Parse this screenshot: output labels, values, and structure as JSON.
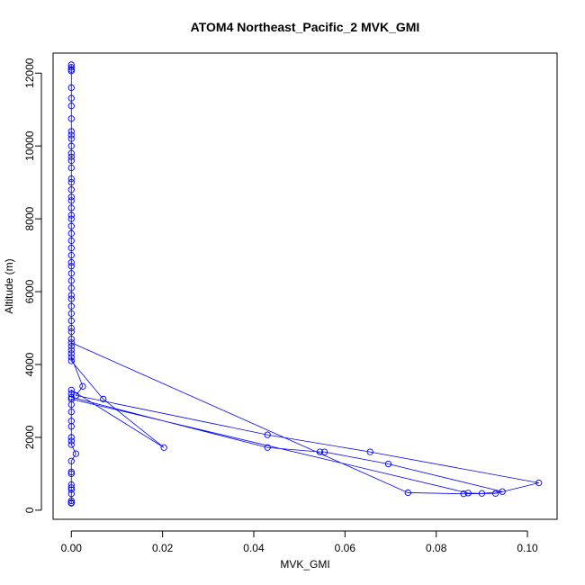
{
  "chart_data": {
    "type": "line",
    "title": "ATOM4 Northeast_Pacific_2 MVK_GMI",
    "xlabel": "MVK_GMI",
    "ylabel": "Altitude (m)",
    "xlim": [
      -0.004,
      0.1065
    ],
    "ylim": [
      -250,
      12550
    ],
    "xticks": [
      0.0,
      0.02,
      0.04,
      0.06,
      0.08,
      0.1
    ],
    "xtick_labels": [
      "0.00",
      "0.02",
      "0.04",
      "0.06",
      "0.08",
      "0.10"
    ],
    "yticks": [
      0,
      2000,
      4000,
      6000,
      8000,
      10000,
      12000
    ],
    "ytick_labels": [
      "0",
      "2000",
      "4000",
      "6000",
      "8000",
      "10000",
      "12000"
    ],
    "grid": false,
    "colors": {
      "series": "#0000ff",
      "axis": "#000000"
    },
    "series": [
      {
        "marker": "open-circle",
        "line": true,
        "points": [
          [
            0.0,
            12230
          ],
          [
            0.0,
            12160
          ],
          [
            0.0,
            12100
          ],
          [
            0.0,
            12060
          ],
          [
            0.0,
            11600
          ],
          [
            0.0,
            11310
          ],
          [
            0.0,
            11100
          ],
          [
            0.0,
            10750
          ],
          [
            0.0,
            10400
          ],
          [
            0.0,
            10300
          ],
          [
            0.0,
            10200
          ],
          [
            0.0,
            10000
          ],
          [
            0.0,
            9800
          ],
          [
            0.0,
            9700
          ],
          [
            0.0,
            9600
          ],
          [
            0.0,
            9400
          ],
          [
            0.0,
            9100
          ],
          [
            0.0,
            9000
          ],
          [
            0.0,
            8800
          ],
          [
            0.0,
            8600
          ],
          [
            0.0,
            8500
          ],
          [
            0.0,
            8300
          ],
          [
            0.0,
            8100
          ],
          [
            0.0,
            8000
          ],
          [
            0.0,
            7800
          ],
          [
            0.0,
            7600
          ],
          [
            0.0,
            7400
          ],
          [
            0.0,
            7200
          ],
          [
            0.0,
            7000
          ],
          [
            0.0,
            6800
          ],
          [
            0.0,
            6700
          ],
          [
            0.0,
            6500
          ],
          [
            0.0,
            6300
          ],
          [
            0.0,
            6100
          ],
          [
            0.0,
            5900
          ],
          [
            0.0,
            5800
          ],
          [
            0.0,
            5600
          ],
          [
            0.0,
            5400
          ],
          [
            0.0,
            5200
          ],
          [
            0.0,
            5000
          ],
          [
            0.0,
            4900
          ],
          [
            0.0,
            4700
          ],
          [
            0.0,
            4500
          ],
          [
            0.0,
            4300
          ],
          [
            0.0,
            4200
          ],
          [
            0.0025,
            3400
          ],
          [
            0.001,
            3150
          ],
          [
            0.043,
            2070
          ],
          [
            0.0655,
            1600
          ],
          [
            0.1025,
            750
          ],
          [
            0.093,
            460
          ],
          [
            0.086,
            450
          ],
          [
            0.0738,
            480
          ],
          [
            0.0,
            4600
          ],
          [
            0.0,
            4400
          ],
          [
            0.0,
            4100
          ],
          [
            0.007,
            3050
          ],
          [
            0.0203,
            1720
          ],
          [
            0.0,
            3300
          ],
          [
            0.0,
            3200
          ],
          [
            0.0,
            3100
          ],
          [
            0.043,
            1720
          ],
          [
            0.0545,
            1600
          ],
          [
            0.0555,
            1600
          ],
          [
            0.0695,
            1270
          ],
          [
            0.0945,
            510
          ],
          [
            0.09,
            460
          ],
          [
            0.087,
            470
          ],
          [
            0.0,
            3050
          ],
          [
            0.0,
            2900
          ],
          [
            0.0,
            2700
          ],
          [
            0.0,
            2450
          ],
          [
            0.0,
            2300
          ],
          [
            0.0,
            2000
          ],
          [
            0.0,
            1900
          ],
          [
            0.0,
            1800
          ],
          [
            0.001,
            1550
          ],
          [
            0.0,
            1350
          ],
          [
            0.0,
            1050
          ],
          [
            0.0,
            1000
          ],
          [
            0.0,
            700
          ],
          [
            0.0,
            620
          ],
          [
            0.0,
            560
          ],
          [
            0.0,
            450
          ],
          [
            0.0,
            260
          ],
          [
            0.0,
            210
          ],
          [
            0.0,
            190
          ]
        ]
      }
    ]
  }
}
